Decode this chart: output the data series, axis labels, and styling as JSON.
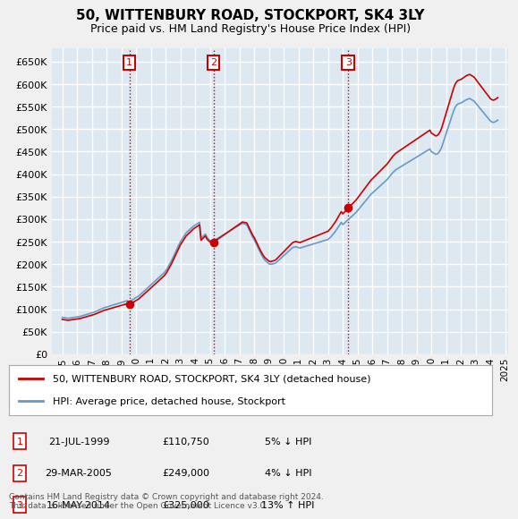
{
  "title": "50, WITTENBURY ROAD, STOCKPORT, SK4 3LY",
  "subtitle": "Price paid vs. HM Land Registry's House Price Index (HPI)",
  "ylabel_ticks": [
    "£0",
    "£50K",
    "£100K",
    "£150K",
    "£200K",
    "£250K",
    "£300K",
    "£350K",
    "£400K",
    "£450K",
    "£500K",
    "£550K",
    "£600K",
    "£650K"
  ],
  "ylim": [
    0,
    650000
  ],
  "ytick_values": [
    0,
    50000,
    100000,
    150000,
    200000,
    250000,
    300000,
    350000,
    400000,
    450000,
    500000,
    550000,
    600000,
    650000
  ],
  "x_start_year": 1995,
  "x_end_year": 2025,
  "hpi_color": "#6699cc",
  "price_color": "#cc0000",
  "background_color": "#e8e8f0",
  "plot_bg_color": "#dde8f0",
  "grid_color": "#ffffff",
  "sale_points": [
    {
      "year": 1999.55,
      "price": 110750,
      "label": "1"
    },
    {
      "year": 2005.24,
      "price": 249000,
      "label": "2"
    },
    {
      "year": 2014.37,
      "price": 325000,
      "label": "3"
    }
  ],
  "legend_entries": [
    {
      "color": "#cc0000",
      "label": "50, WITTENBURY ROAD, STOCKPORT, SK4 3LY (detached house)"
    },
    {
      "color": "#6699cc",
      "label": "HPI: Average price, detached house, Stockport"
    }
  ],
  "table_rows": [
    {
      "num": "1",
      "date": "21-JUL-1999",
      "price": "£110,750",
      "hpi": "5% ↓ HPI"
    },
    {
      "num": "2",
      "date": "29-MAR-2005",
      "price": "£249,000",
      "hpi": "4% ↓ HPI"
    },
    {
      "num": "3",
      "date": "16-MAY-2014",
      "price": "£325,000",
      "hpi": "13% ↑ HPI"
    }
  ],
  "footnote": "Contains HM Land Registry data © Crown copyright and database right 2024.\nThis data is licensed under the Open Government Licence v3.0.",
  "hpi_data": {
    "years": [
      1995.0,
      1995.1,
      1995.2,
      1995.3,
      1995.4,
      1995.5,
      1995.6,
      1995.7,
      1995.8,
      1995.9,
      1996.0,
      1996.1,
      1996.2,
      1996.3,
      1996.4,
      1996.5,
      1996.6,
      1996.7,
      1996.8,
      1996.9,
      1997.0,
      1997.1,
      1997.2,
      1997.3,
      1997.4,
      1997.5,
      1997.6,
      1997.7,
      1997.8,
      1997.9,
      1998.0,
      1998.1,
      1998.2,
      1998.3,
      1998.4,
      1998.5,
      1998.6,
      1998.7,
      1998.8,
      1998.9,
      1999.0,
      1999.1,
      1999.2,
      1999.3,
      1999.4,
      1999.5,
      1999.6,
      1999.7,
      1999.8,
      1999.9,
      2000.0,
      2000.1,
      2000.2,
      2000.3,
      2000.4,
      2000.5,
      2000.6,
      2000.7,
      2000.8,
      2000.9,
      2001.0,
      2001.1,
      2001.2,
      2001.3,
      2001.4,
      2001.5,
      2001.6,
      2001.7,
      2001.8,
      2001.9,
      2002.0,
      2002.1,
      2002.2,
      2002.3,
      2002.4,
      2002.5,
      2002.6,
      2002.7,
      2002.8,
      2002.9,
      2003.0,
      2003.1,
      2003.2,
      2003.3,
      2003.4,
      2003.5,
      2003.6,
      2003.7,
      2003.8,
      2003.9,
      2004.0,
      2004.1,
      2004.2,
      2004.3,
      2004.4,
      2004.5,
      2004.6,
      2004.7,
      2004.8,
      2004.9,
      2005.0,
      2005.1,
      2005.2,
      2005.3,
      2005.4,
      2005.5,
      2005.6,
      2005.7,
      2005.8,
      2005.9,
      2006.0,
      2006.1,
      2006.2,
      2006.3,
      2006.4,
      2006.5,
      2006.6,
      2006.7,
      2006.8,
      2006.9,
      2007.0,
      2007.1,
      2007.2,
      2007.3,
      2007.4,
      2007.5,
      2007.6,
      2007.7,
      2007.8,
      2007.9,
      2008.0,
      2008.1,
      2008.2,
      2008.3,
      2008.4,
      2008.5,
      2008.6,
      2008.7,
      2008.8,
      2008.9,
      2009.0,
      2009.1,
      2009.2,
      2009.3,
      2009.4,
      2009.5,
      2009.6,
      2009.7,
      2009.8,
      2009.9,
      2010.0,
      2010.1,
      2010.2,
      2010.3,
      2010.4,
      2010.5,
      2010.6,
      2010.7,
      2010.8,
      2010.9,
      2011.0,
      2011.1,
      2011.2,
      2011.3,
      2011.4,
      2011.5,
      2011.6,
      2011.7,
      2011.8,
      2011.9,
      2012.0,
      2012.1,
      2012.2,
      2012.3,
      2012.4,
      2012.5,
      2012.6,
      2012.7,
      2012.8,
      2012.9,
      2013.0,
      2013.1,
      2013.2,
      2013.3,
      2013.4,
      2013.5,
      2013.6,
      2013.7,
      2013.8,
      2013.9,
      2014.0,
      2014.1,
      2014.2,
      2014.3,
      2014.4,
      2014.5,
      2014.6,
      2014.7,
      2014.8,
      2014.9,
      2015.0,
      2015.1,
      2015.2,
      2015.3,
      2015.4,
      2015.5,
      2015.6,
      2015.7,
      2015.8,
      2015.9,
      2016.0,
      2016.1,
      2016.2,
      2016.3,
      2016.4,
      2016.5,
      2016.6,
      2016.7,
      2016.8,
      2016.9,
      2017.0,
      2017.1,
      2017.2,
      2017.3,
      2017.4,
      2017.5,
      2017.6,
      2017.7,
      2017.8,
      2017.9,
      2018.0,
      2018.1,
      2018.2,
      2018.3,
      2018.4,
      2018.5,
      2018.6,
      2018.7,
      2018.8,
      2018.9,
      2019.0,
      2019.1,
      2019.2,
      2019.3,
      2019.4,
      2019.5,
      2019.6,
      2019.7,
      2019.8,
      2019.9,
      2020.0,
      2020.1,
      2020.2,
      2020.3,
      2020.4,
      2020.5,
      2020.6,
      2020.7,
      2020.8,
      2020.9,
      2021.0,
      2021.1,
      2021.2,
      2021.3,
      2021.4,
      2021.5,
      2021.6,
      2021.7,
      2021.8,
      2021.9,
      2022.0,
      2022.1,
      2022.2,
      2022.3,
      2022.4,
      2022.5,
      2022.6,
      2022.7,
      2022.8,
      2022.9,
      2023.0,
      2023.1,
      2023.2,
      2023.3,
      2023.4,
      2023.5,
      2023.6,
      2023.7,
      2023.8,
      2023.9,
      2024.0,
      2024.1,
      2024.2,
      2024.3,
      2024.4,
      2024.5
    ],
    "values": [
      82000,
      81500,
      81000,
      80500,
      80000,
      80500,
      81000,
      81500,
      82000,
      82500,
      83000,
      83500,
      84000,
      85000,
      86000,
      87000,
      88000,
      89000,
      90000,
      91000,
      92000,
      93000,
      94000,
      95500,
      97000,
      98500,
      100000,
      101500,
      103000,
      104000,
      105000,
      106000,
      107000,
      108000,
      109000,
      110000,
      111000,
      112000,
      113000,
      114000,
      115000,
      116000,
      117000,
      118000,
      119000,
      116500,
      118000,
      120000,
      122000,
      124000,
      126000,
      128000,
      130000,
      133000,
      136000,
      139000,
      142000,
      145000,
      148000,
      151000,
      154000,
      157000,
      160000,
      163000,
      166000,
      169000,
      172000,
      175000,
      178000,
      181000,
      185000,
      190000,
      196000,
      202000,
      208000,
      215000,
      222000,
      229000,
      236000,
      243000,
      250000,
      255000,
      260000,
      265000,
      270000,
      273000,
      276000,
      279000,
      282000,
      285000,
      287000,
      289000,
      291000,
      293000,
      258000,
      261000,
      264000,
      267000,
      260000,
      256000,
      253000,
      252000,
      251000,
      253000,
      255000,
      257000,
      259000,
      261000,
      263000,
      265000,
      267000,
      269000,
      271000,
      273000,
      275000,
      277000,
      279000,
      281000,
      283000,
      285000,
      287000,
      289000,
      291000,
      290000,
      289000,
      288000,
      281000,
      274000,
      267000,
      260000,
      255000,
      248000,
      241000,
      234000,
      227000,
      221000,
      215000,
      210000,
      207000,
      204000,
      201000,
      200000,
      200500,
      201000,
      202000,
      204000,
      207000,
      210000,
      213000,
      216000,
      219000,
      222000,
      225000,
      228000,
      231000,
      234000,
      237000,
      238000,
      239000,
      238000,
      237000,
      236000,
      237000,
      238000,
      239000,
      240000,
      241000,
      242000,
      243000,
      244000,
      245000,
      246000,
      247000,
      248000,
      249000,
      250000,
      251000,
      252000,
      253000,
      254000,
      255000,
      258000,
      261000,
      265000,
      269000,
      273000,
      278000,
      283000,
      288000,
      293000,
      288000,
      291000,
      294000,
      297000,
      300000,
      303000,
      306000,
      309000,
      312000,
      315000,
      319000,
      323000,
      327000,
      331000,
      335000,
      339000,
      343000,
      347000,
      351000,
      355000,
      358000,
      361000,
      364000,
      367000,
      370000,
      373000,
      376000,
      379000,
      382000,
      385000,
      388000,
      392000,
      396000,
      400000,
      404000,
      407000,
      410000,
      412000,
      414000,
      416000,
      418000,
      420000,
      422000,
      424000,
      426000,
      428000,
      430000,
      432000,
      434000,
      436000,
      438000,
      440000,
      442000,
      444000,
      446000,
      448000,
      450000,
      452000,
      454000,
      456000,
      450000,
      448000,
      446000,
      444000,
      445000,
      448000,
      453000,
      460000,
      470000,
      480000,
      490000,
      500000,
      510000,
      520000,
      530000,
      540000,
      548000,
      553000,
      556000,
      557000,
      558000,
      560000,
      562000,
      564000,
      566000,
      567000,
      568000,
      566000,
      564000,
      562000,
      558000,
      554000,
      550000,
      546000,
      542000,
      538000,
      534000,
      530000,
      526000,
      522000,
      518000,
      516000,
      515000,
      516000,
      518000,
      520000
    ]
  }
}
